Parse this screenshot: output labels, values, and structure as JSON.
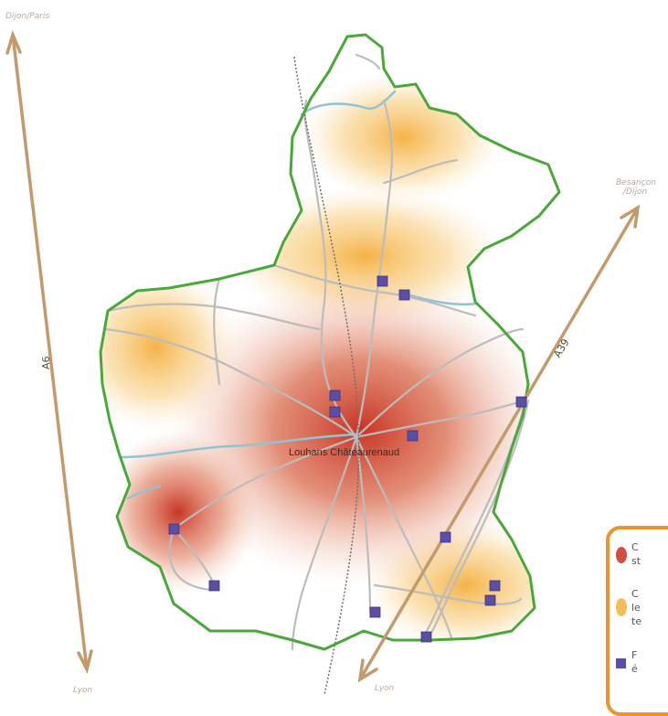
{
  "labels": {
    "dijon_paris": "Dijon/Paris",
    "besancon_dijon": "Besançon\n/Dijon",
    "lyon_left": "Lyon",
    "lyon_bottom": "Lyon",
    "a6": "A6",
    "a39": "A39",
    "town": "Louhans Châteaurenaud"
  },
  "legend": {
    "items": [
      {
        "symbol": "red-blob",
        "text": "C\nst"
      },
      {
        "symbol": "orange-blob",
        "text": "C\nle\nte"
      },
      {
        "symbol": "purple-square",
        "text": "F\né"
      }
    ]
  },
  "colors": {
    "boundary": "#4aa83a",
    "road": "#bdbdbd",
    "river": "#8fc3d6",
    "arrow": "#c39a6b",
    "station": "#5b4ea6",
    "hot": "#c9301e",
    "warm": "#f3b13b",
    "legend_border": "#f0922b"
  }
}
